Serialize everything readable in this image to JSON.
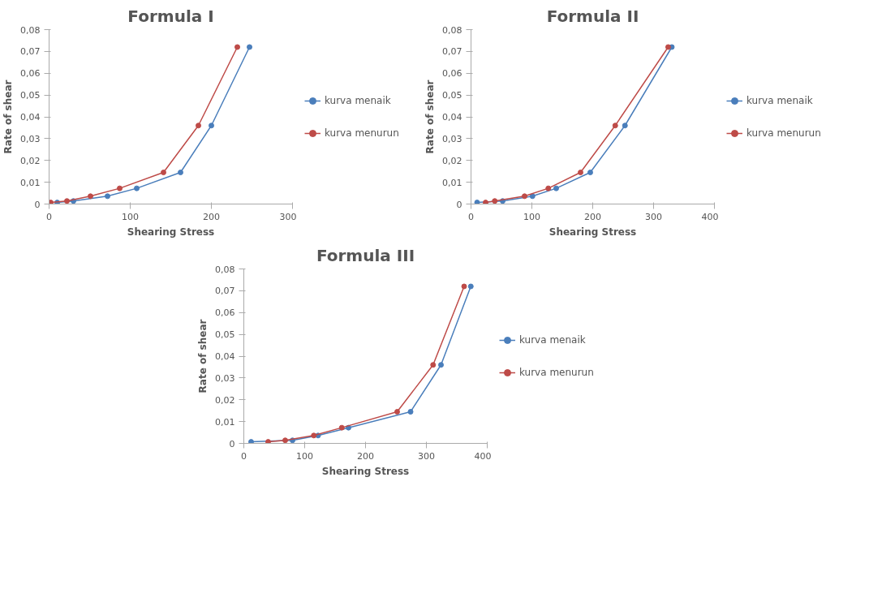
{
  "chart_data": [
    {
      "type": "line",
      "title": "Formula I",
      "xlabel": "Shearing Stress",
      "ylabel": "Rate of shear",
      "xlim": [
        0,
        300
      ],
      "xticks": [
        0,
        100,
        200,
        300
      ],
      "ylim": [
        0,
        0.08
      ],
      "yticks": [
        {
          "value": 0,
          "label": "0"
        },
        {
          "value": 0.01,
          "label": "0,01"
        },
        {
          "value": 0.02,
          "label": "0,02"
        },
        {
          "value": 0.03,
          "label": "0,03"
        },
        {
          "value": 0.04,
          "label": "0,04"
        },
        {
          "value": 0.05,
          "label": "0,05"
        },
        {
          "value": 0.06,
          "label": "0,06"
        },
        {
          "value": 0.07,
          "label": "0,07"
        },
        {
          "value": 0.08,
          "label": "0,08"
        }
      ],
      "grid": false,
      "legend": "right",
      "marker": "circle",
      "line_style": "solid",
      "series": [
        {
          "name": "kurva menaik",
          "color": "#4a7ebb",
          "x": [
            10,
            30,
            72,
            108,
            162,
            200,
            247
          ],
          "values": [
            0.0007,
            0.0014,
            0.0036,
            0.0072,
            0.0145,
            0.036,
            0.072
          ]
        },
        {
          "name": "kurva menurun",
          "color": "#be4b48",
          "x": [
            2,
            22,
            51,
            87,
            141,
            184,
            232
          ],
          "values": [
            0.0007,
            0.0014,
            0.0036,
            0.0072,
            0.0145,
            0.036,
            0.072
          ]
        }
      ]
    },
    {
      "type": "line",
      "title": "Formula II",
      "xlabel": "Shearing Stress",
      "ylabel": "Rate of shear",
      "xlim": [
        0,
        400
      ],
      "xticks": [
        0,
        100,
        200,
        300,
        400
      ],
      "ylim": [
        0,
        0.08
      ],
      "yticks": [
        {
          "value": 0,
          "label": "0"
        },
        {
          "value": 0.01,
          "label": "0,01"
        },
        {
          "value": 0.02,
          "label": "0,02"
        },
        {
          "value": 0.03,
          "label": "0,03"
        },
        {
          "value": 0.04,
          "label": "0,04"
        },
        {
          "value": 0.05,
          "label": "0,05"
        },
        {
          "value": 0.06,
          "label": "0,06"
        },
        {
          "value": 0.07,
          "label": "0,07"
        },
        {
          "value": 0.08,
          "label": "0,08"
        }
      ],
      "grid": false,
      "legend": "right",
      "marker": "circle",
      "line_style": "solid",
      "series": [
        {
          "name": "kurva menaik",
          "color": "#4a7ebb",
          "x": [
            10,
            52,
            101,
            140,
            196,
            253,
            330
          ],
          "values": [
            0.0007,
            0.0014,
            0.0036,
            0.0072,
            0.0145,
            0.036,
            0.072
          ]
        },
        {
          "name": "kurva menurun",
          "color": "#be4b48",
          "x": [
            24,
            39,
            88,
            127,
            180,
            237,
            324
          ],
          "values": [
            0.0007,
            0.0014,
            0.0036,
            0.0072,
            0.0145,
            0.036,
            0.072
          ]
        }
      ]
    },
    {
      "type": "line",
      "title": "Formula III",
      "xlabel": "Shearing Stress",
      "ylabel": "Rate of shear",
      "xlim": [
        0,
        400
      ],
      "xticks": [
        0,
        100,
        200,
        300,
        400
      ],
      "ylim": [
        0,
        0.08
      ],
      "yticks": [
        {
          "value": 0,
          "label": "0"
        },
        {
          "value": 0.01,
          "label": "0,01"
        },
        {
          "value": 0.02,
          "label": "0,02"
        },
        {
          "value": 0.03,
          "label": "0,03"
        },
        {
          "value": 0.04,
          "label": "0,04"
        },
        {
          "value": 0.05,
          "label": "0,05"
        },
        {
          "value": 0.06,
          "label": "0,06"
        },
        {
          "value": 0.07,
          "label": "0,07"
        },
        {
          "value": 0.08,
          "label": "0,08"
        }
      ],
      "grid": false,
      "legend": "right",
      "marker": "circle",
      "line_style": "solid",
      "series": [
        {
          "name": "kurva menaik",
          "color": "#4a7ebb",
          "x": [
            12,
            80,
            122,
            172,
            274,
            324,
            373
          ],
          "values": [
            0.0007,
            0.0014,
            0.0036,
            0.0072,
            0.0145,
            0.036,
            0.072
          ]
        },
        {
          "name": "kurva menurun",
          "color": "#be4b48",
          "x": [
            40,
            68,
            115,
            161,
            252,
            311,
            362
          ],
          "values": [
            0.0007,
            0.0014,
            0.0036,
            0.0072,
            0.0145,
            0.036,
            0.072
          ]
        }
      ]
    }
  ]
}
